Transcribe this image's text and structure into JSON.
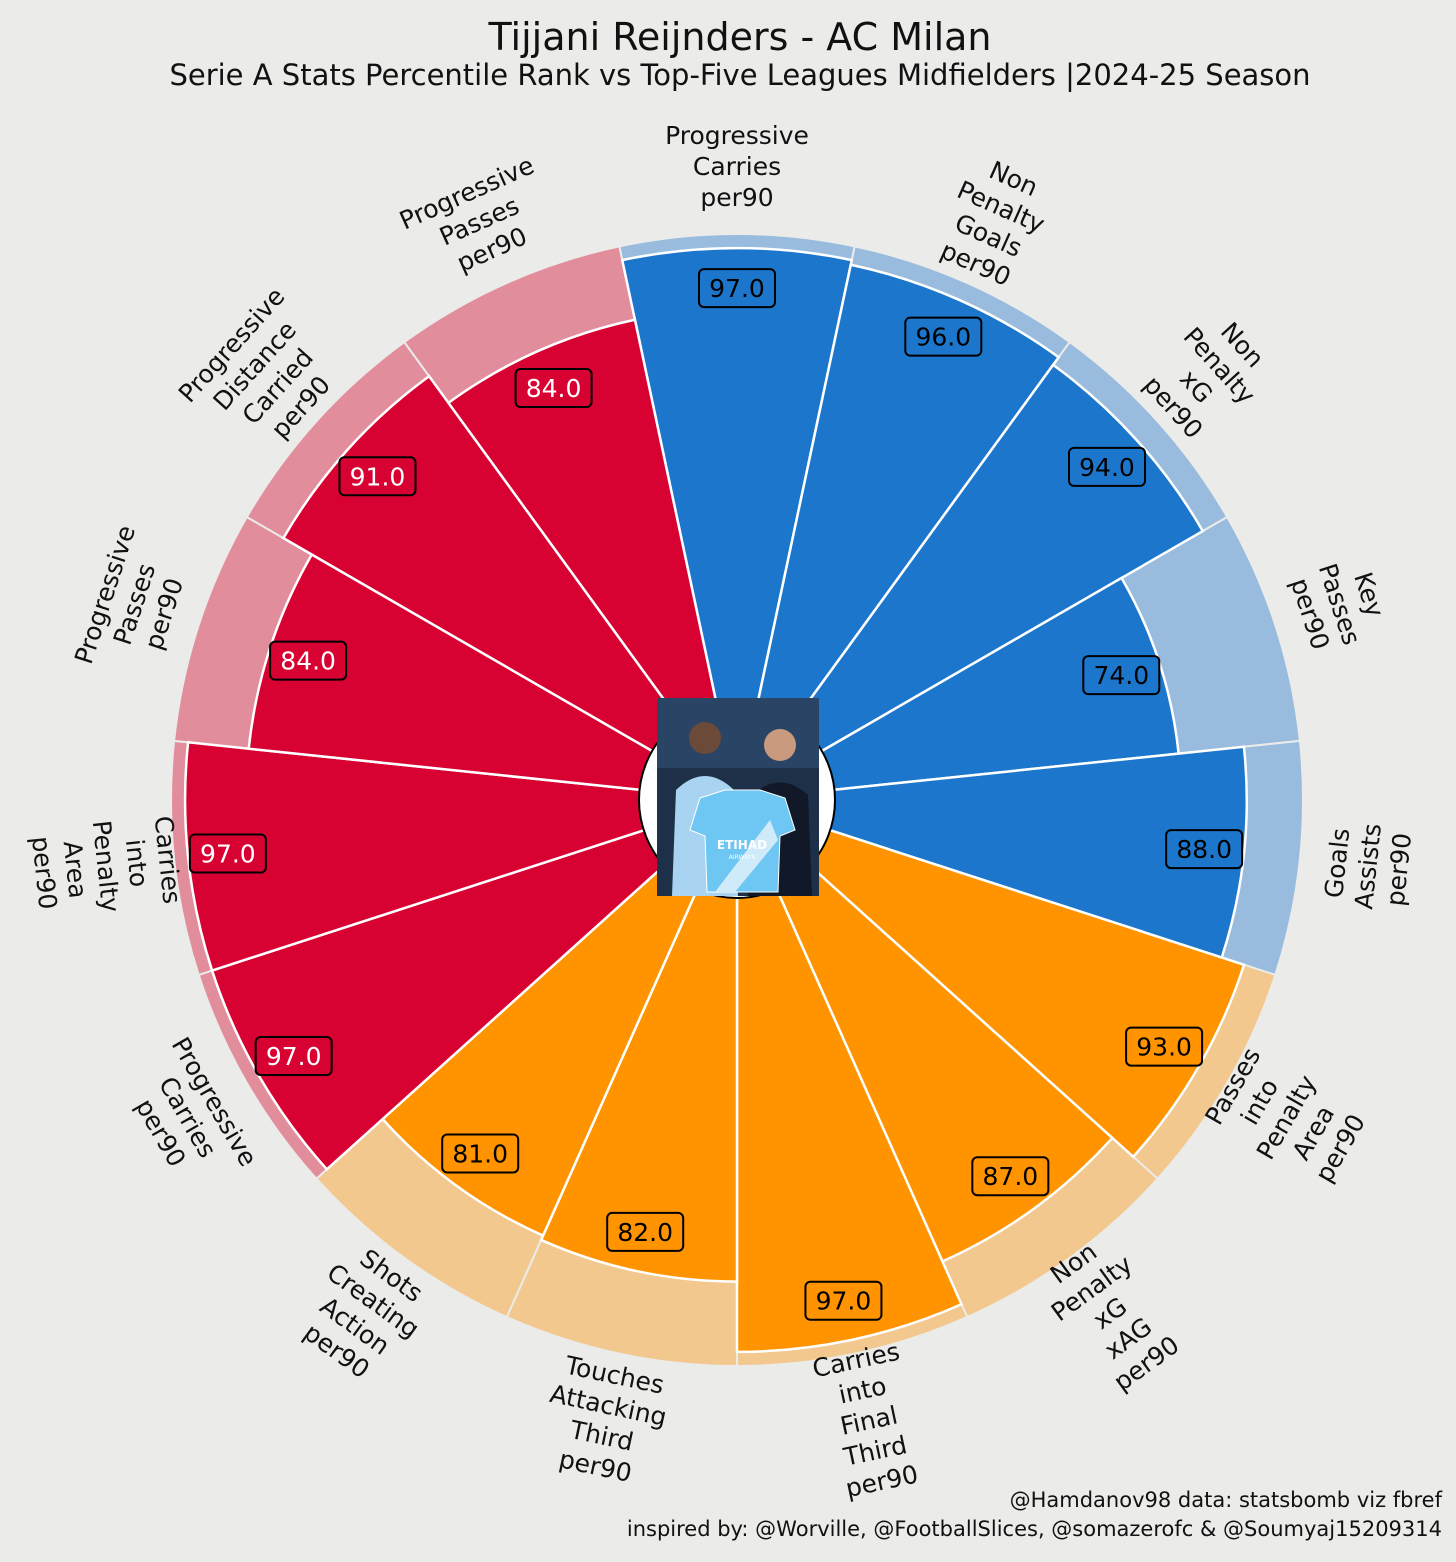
{
  "chart_data": {
    "type": "pizza",
    "title": "Tijjani Reijnders - AC Milan",
    "subtitle": "Serie A Stats Percentile Rank vs Top-Five Leagues Midfielders |2024-25 Season",
    "range": [
      0,
      100
    ],
    "groups": [
      {
        "name": "blue",
        "fill": "#1c77cc",
        "back": "#99bcde"
      },
      {
        "name": "orange",
        "fill": "#ff9300",
        "back": "#f2c88e"
      },
      {
        "name": "red",
        "fill": "#d70232",
        "back": "#e28d9c"
      }
    ],
    "params": [
      {
        "label": [
          "Progressive",
          "Carries",
          "per90"
        ],
        "value": 97.0,
        "display": "97.0",
        "group": "blue"
      },
      {
        "label": [
          "Non",
          "Penalty",
          "Goals",
          "per90"
        ],
        "value": 96.0,
        "display": "96.0",
        "group": "blue"
      },
      {
        "label": [
          "Non",
          "Penalty",
          "xG",
          "per90"
        ],
        "value": 94.0,
        "display": "94.0",
        "group": "blue"
      },
      {
        "label": [
          "Key",
          "Passes",
          "per90"
        ],
        "value": 74.0,
        "display": "74.0",
        "group": "blue"
      },
      {
        "label": [
          "Goals",
          "Assists",
          "per90"
        ],
        "value": 88.0,
        "display": "88.0",
        "group": "blue"
      },
      {
        "label": [
          "Passes",
          "into",
          "Penalty",
          "Area",
          "per90"
        ],
        "value": 93.0,
        "display": "93.0",
        "group": "orange"
      },
      {
        "label": [
          "Non",
          "Penalty",
          "xG",
          "xAG",
          "per90"
        ],
        "value": 87.0,
        "display": "87.0",
        "group": "orange"
      },
      {
        "label": [
          "Carries",
          "into",
          "Final",
          "Third",
          "per90"
        ],
        "value": 97.0,
        "display": "97.0",
        "group": "orange"
      },
      {
        "label": [
          "Touches",
          "Attacking",
          "Third",
          "per90"
        ],
        "value": 82.0,
        "display": "82.0",
        "group": "orange"
      },
      {
        "label": [
          "Shots",
          "Creating",
          "Action",
          "per90"
        ],
        "value": 81.0,
        "display": "81.0",
        "group": "orange"
      },
      {
        "label": [
          "Progressive",
          "Carries",
          "per90"
        ],
        "value": 97.0,
        "display": "97.0",
        "group": "red"
      },
      {
        "label": [
          "Carries",
          "into",
          "Penalty",
          "Area",
          "per90"
        ],
        "value": 97.0,
        "display": "97.0",
        "group": "red"
      },
      {
        "label": [
          "Progressive",
          "Passes",
          "per90"
        ],
        "value": 84.0,
        "display": "84.0",
        "group": "red"
      },
      {
        "label": [
          "Progressive",
          "Distance",
          "Carried",
          "per90"
        ],
        "value": 91.0,
        "display": "91.0",
        "group": "red"
      },
      {
        "label": [
          "Progressive",
          "Passes",
          "per90"
        ],
        "value": 84.0,
        "display": "84.0",
        "group": "red"
      }
    ]
  },
  "center_image": {
    "description_icon": "player-photo",
    "sponsor_text": "ETIHAD",
    "sponsor_sub": "AIRWAYS"
  },
  "credits": {
    "line1": "@Hamdanov98 data: statsbomb viz fbref",
    "line2": "inspired by: @Worville, @FootballSlices, @somazerofc & @Soumyaj15209314"
  }
}
